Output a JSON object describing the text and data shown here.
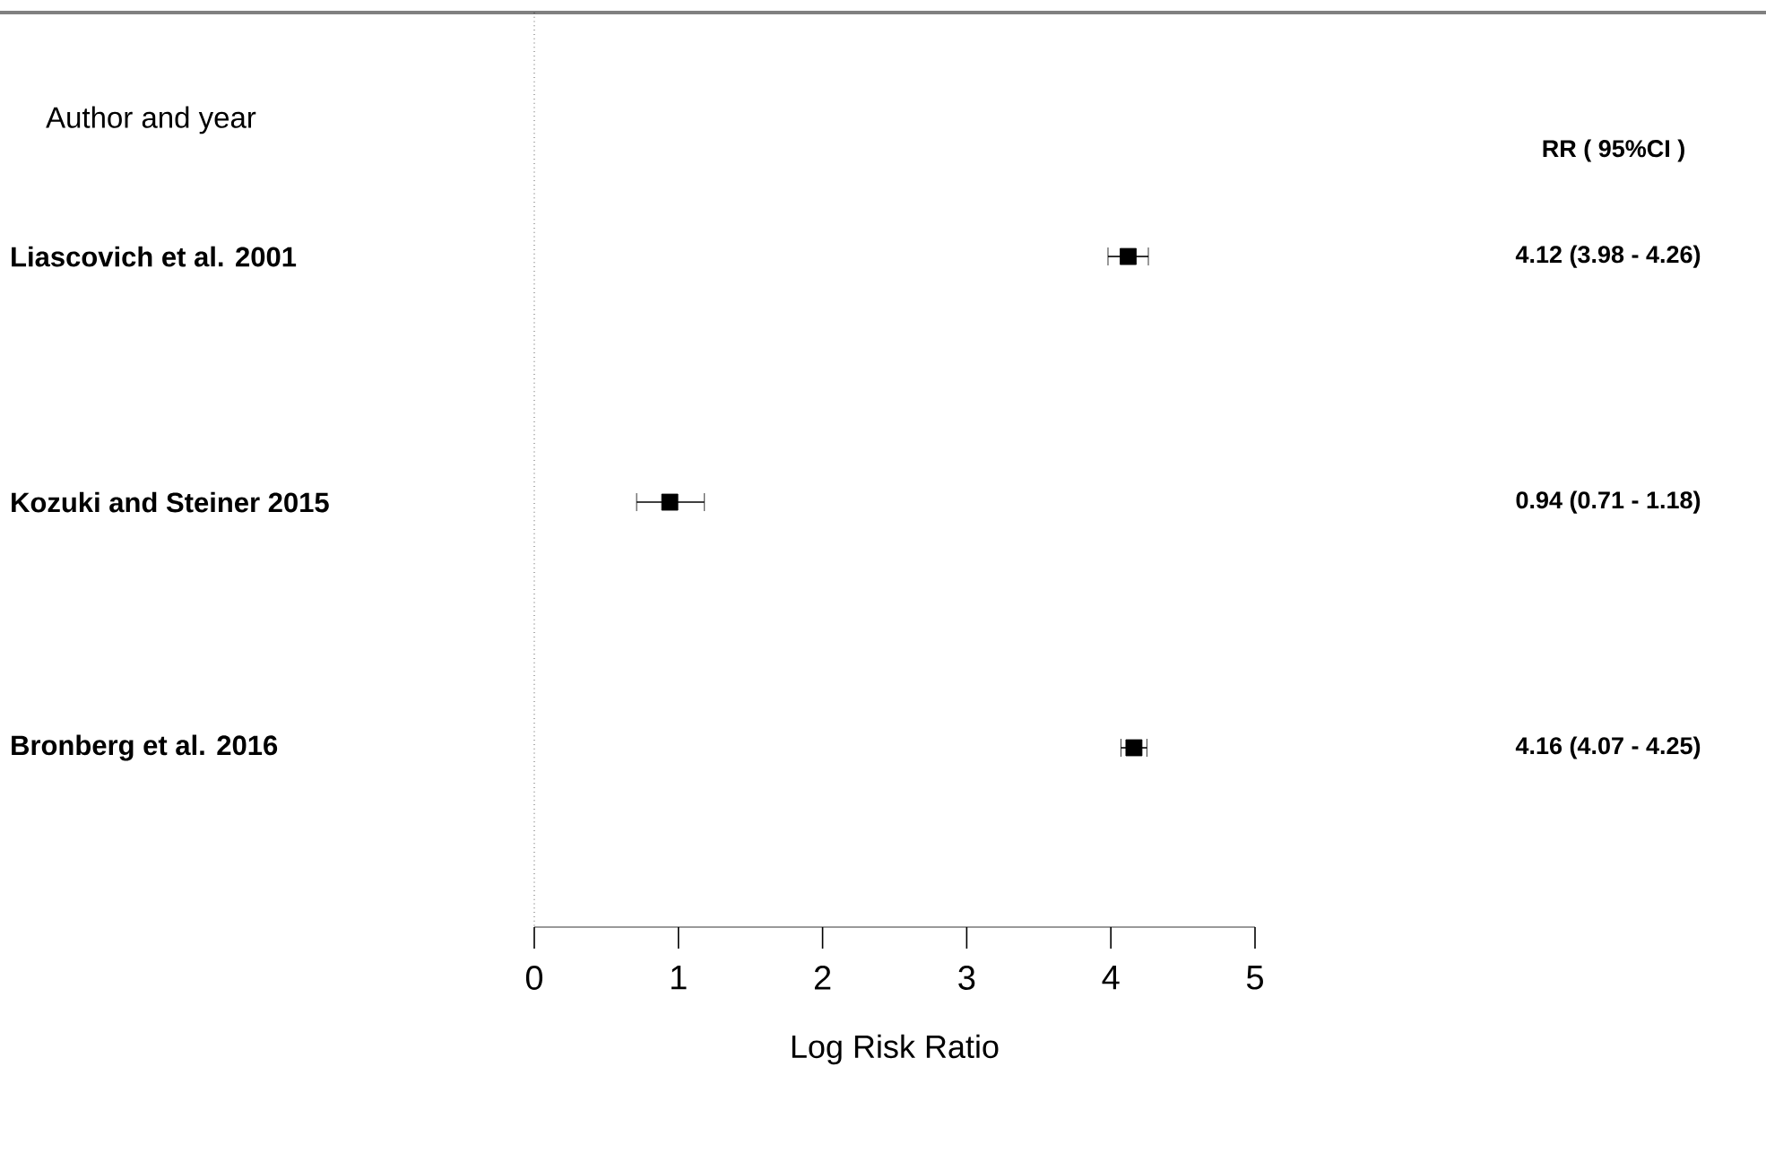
{
  "chart_data": {
    "type": "scatter",
    "orientation": "horizontal",
    "categories": [
      "Liascovich et al. 2001",
      "Kozuki and Steiner 2015",
      "Bronberg et al. 2016"
    ],
    "values": [
      4.12,
      0.94,
      4.16
    ],
    "errors": [
      [
        3.98,
        4.26
      ],
      [
        0.71,
        1.18
      ],
      [
        4.07,
        4.25
      ]
    ],
    "value_labels": [
      "4.12 (3.98 - 4.26)",
      "0.94 (0.71 - 1.18)",
      "4.16 (4.07 - 4.25)"
    ],
    "color": "#000000",
    "marker": "square",
    "xlim": [
      0,
      5
    ],
    "xticks": [
      0,
      1,
      2,
      3,
      4,
      5
    ],
    "xlabel": "Log Risk Ratio",
    "ref_lines": [
      {
        "axis": "x",
        "value": 0,
        "line_style": "dotted"
      }
    ],
    "annotations": [
      "Author and year",
      "RR ( 95%CI )"
    ]
  }
}
